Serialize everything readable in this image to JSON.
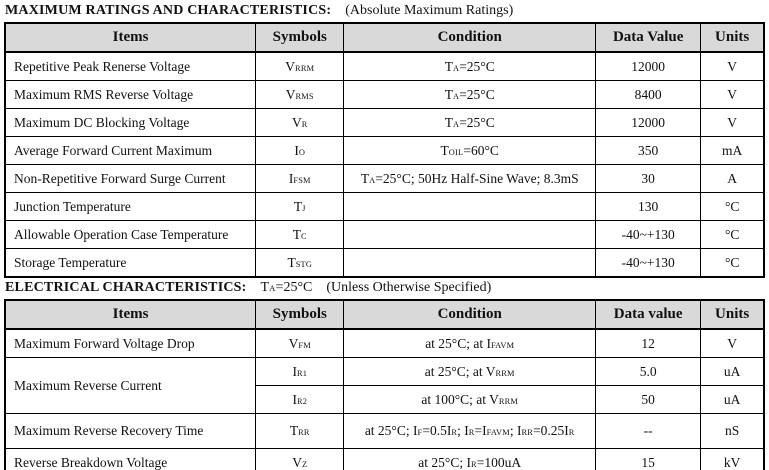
{
  "colors": {
    "header_bg": "#d9d9d9",
    "border": "#000000",
    "text": "#111111",
    "page_bg": "#ffffff"
  },
  "section1": {
    "title_bold": "MAXIMUM RATINGS AND CHARACTERISTICS:",
    "title_note": "(Absolute Maximum Ratings)",
    "table": {
      "headers": [
        "Items",
        "Symbols",
        "Condition",
        "Data Value",
        "Units"
      ],
      "rows": [
        {
          "item": "Repetitive Peak Renerse Voltage",
          "symbol": "V_{RRM}",
          "condition": "T_{A}=25°C",
          "value": "12000",
          "units": "V"
        },
        {
          "item": "Maximum RMS Reverse Voltage",
          "symbol": "V_{RMS}",
          "condition": "T_{A}=25°C",
          "value": "8400",
          "units": "V"
        },
        {
          "item": "Maximum DC Blocking Voltage",
          "symbol": "V_{R}",
          "condition": "T_{A}=25°C",
          "value": "12000",
          "units": "V"
        },
        {
          "item": "Average Forward Current Maximum",
          "symbol": "I_{O}",
          "condition": "T_{OIL}=60°C",
          "value": "350",
          "units": "mA"
        },
        {
          "item": "Non-Repetitive Forward Surge Current",
          "symbol": "I_{FSM}",
          "condition": "T_{A}=25°C; 50Hz Half-Sine Wave; 8.3mS",
          "value": "30",
          "units": "A"
        },
        {
          "item": "Junction Temperature",
          "symbol": "T_{J}",
          "condition": "",
          "value": "130",
          "units": "°C"
        },
        {
          "item": "Allowable Operation Case Temperature",
          "symbol": "T_{C}",
          "condition": "",
          "value": "-40~+130",
          "units": "°C"
        },
        {
          "item": "Storage Temperature",
          "symbol": "T_{STG}",
          "condition": "",
          "value": "-40~+130",
          "units": "°C"
        }
      ]
    }
  },
  "section2": {
    "title_bold": "ELECTRICAL CHARACTERISTICS:",
    "title_cond": "T_{A}=25°C",
    "title_note": "(Unless Otherwise Specified)",
    "table": {
      "headers": [
        "Items",
        "Symbols",
        "Condition",
        "Data value",
        "Units"
      ],
      "rows": [
        {
          "item": "Maximum Forward Voltage Drop",
          "symbol": "V_{FM}",
          "condition": "at 25°C; at I_{FAVM}",
          "value": "12",
          "units": "V"
        },
        {
          "item": "Maximum Reverse Current",
          "symbol": "I_{R1}",
          "condition": "at 25°C; at V_{RRM}",
          "value": "5.0",
          "units": "uA"
        },
        {
          "item": "",
          "symbol": "I_{R2}",
          "condition": "at 100°C; at V_{RRM}",
          "value": "50",
          "units": "uA"
        },
        {
          "item": "Maximum Reverse Recovery Time",
          "symbol": "T_{RR}",
          "condition": "at 25°C; I_{F}=0.5I_{R}; I_{R}=I_{FAVM}; I_{RR}=0.25I_{R}",
          "value": "--",
          "units": "nS"
        },
        {
          "item": "Reverse Breakdown Voltage",
          "symbol": "V_{Z}",
          "condition": "at 25°C; I_{R}=100uA",
          "value": "15",
          "units": "kV"
        }
      ]
    }
  }
}
